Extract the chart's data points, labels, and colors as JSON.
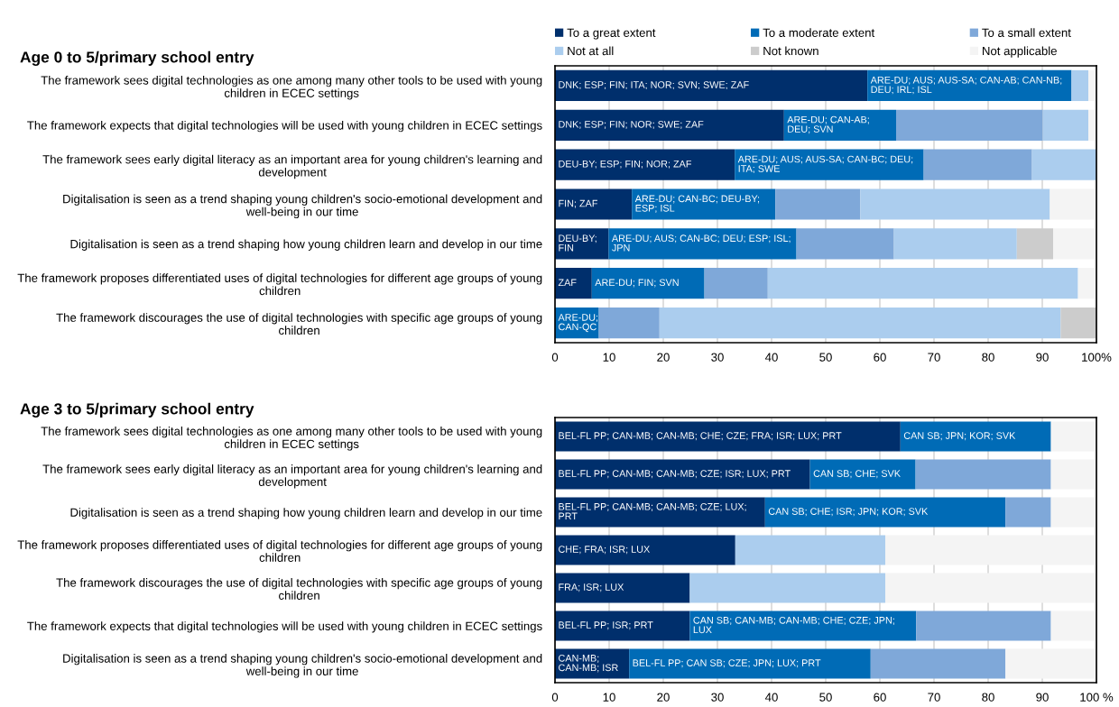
{
  "chart_data": [
    {
      "type": "bar",
      "orientation": "horizontal",
      "stacked": true,
      "title": "Age 0 to 5/primary school entry",
      "legend": "top",
      "grid": "x",
      "categories": [
        "The framework sees digital technologies as one among many other tools to be used with young children in ECEC settings",
        "The framework expects that digital technologies will be used with young children in ECEC settings",
        "The framework sees early digital literacy as an important area for young children's learning and development",
        "Digitalisation is seen as a trend shaping young children's socio-emotional development and well-being in our time",
        "Digitalisation is seen as a trend shaping how young children learn and develop in our time",
        "The framework proposes differentiated uses of digital technologies for different age groups of young children",
        "The framework discourages the use of digital technologies with specific age groups of young children"
      ],
      "xlim": [
        0,
        100
      ],
      "xticks": [
        0,
        10,
        20,
        30,
        40,
        50,
        60,
        70,
        80,
        90,
        {
          "value": 100,
          "label": "100%"
        }
      ],
      "series": [
        {
          "name": "To a great extent",
          "color": "#002f6c",
          "values": [
            57.7,
            42.3,
            33.2,
            14.2,
            9.9,
            6.8,
            0
          ],
          "value_labels": [
            "DNK; ESP; FIN; ITA; NOR; SVN; SWE; ZAF",
            "DNK; ESP; FIN; NOR; SWE; ZAF",
            "DEU-BY; ESP; FIN; NOR; ZAF",
            "FIN; ZAF",
            "DEU-BY; FIN",
            "ZAF",
            null
          ]
        },
        {
          "name": "To a moderate extent",
          "color": "#006bb6",
          "values": [
            37.7,
            20.7,
            34.9,
            26.5,
            34.7,
            20.8,
            8.1
          ],
          "value_labels": [
            "ARE-DU; AUS; AUS-SA; CAN-AB; CAN-NB; DEU; IRL; ISL",
            "ARE-DU; CAN-AB; DEU; SVN",
            "ARE-DU; AUS; AUS-SA; CAN-BC; DEU; ITA; SWE",
            "ARE-DU; CAN-BC; DEU-BY; ESP; ISL",
            "ARE-DU; AUS; CAN-BC; DEU; ESP; ISL; JPN",
            "ARE-DU; FIN; SVN",
            "ARE-DU; CAN-QC"
          ]
        },
        {
          "name": "To a small extent",
          "color": "#7fa8d9",
          "values": [
            0,
            27.1,
            20.0,
            15.7,
            18.0,
            11.7,
            11.2
          ]
        },
        {
          "name": "Not at all",
          "color": "#abcdee",
          "values": [
            3.1,
            8.4,
            11.9,
            35.0,
            22.7,
            57.3,
            74.1
          ]
        },
        {
          "name": "Not known",
          "color": "#cccccc",
          "values": [
            0,
            0,
            0,
            0,
            6.7,
            0,
            6.6
          ]
        },
        {
          "name": "Not applicable",
          "color": "#f4f4f4",
          "values": [
            1.5,
            1.5,
            0,
            8.6,
            8.0,
            3.4,
            0
          ]
        }
      ]
    },
    {
      "type": "bar",
      "orientation": "horizontal",
      "stacked": true,
      "title": "Age 3 to 5/primary school entry",
      "grid": "x",
      "categories": [
        "The framework sees digital technologies as one among many other tools to be used with young children in ECEC settings",
        "The framework sees early digital literacy as an important area for young children's learning and development",
        "Digitalisation is seen as a trend shaping how young children learn and develop in our time",
        "The framework proposes differentiated uses of digital technologies for different age groups of young children",
        "The framework discourages the use of digital technologies with specific age groups of young children",
        "The framework expects that digital technologies will be used with young children in ECEC settings",
        "Digitalisation is seen as a trend shaping young children's socio-emotional development and well-being in our time"
      ],
      "xlim": [
        0,
        100
      ],
      "xticks": [
        0,
        10,
        20,
        30,
        40,
        50,
        60,
        70,
        80,
        90,
        {
          "value": 100,
          "label": "100 %"
        }
      ],
      "series": [
        {
          "color": "#002f6c",
          "values": [
            63.8,
            47.1,
            38.8,
            33.3,
            24.9,
            24.9,
            13.7
          ],
          "value_labels": [
            "BEL-FL PP; CAN-MB; CAN-MB; CHE; CZE; FRA; ISR; LUX; PRT",
            "BEL-FL PP; CAN-MB; CAN-MB; CZE; ISR; LUX; PRT",
            "BEL-FL PP; CAN-MB; CAN-MB; CZE; LUX; PRT",
            "CHE; FRA; ISR; LUX",
            "FRA; ISR; LUX",
            "BEL-FL PP; ISR; PRT",
            "CAN-MB; CAN-MB; ISR"
          ]
        },
        {
          "color": "#006bb6",
          "values": [
            27.8,
            19.5,
            44.4,
            0,
            0,
            41.8,
            44.6
          ],
          "value_labels": [
            "CAN SB; JPN; KOR; SVK",
            "CAN SB; CHE; SVK",
            "CAN SB; CHE; ISR; JPN; KOR; SVK",
            null,
            null,
            "CAN SB; CAN-MB; CAN-MB; CHE; CZE; JPN; LUX",
            "BEL-FL PP; CAN SB; CZE; JPN; LUX; PRT"
          ]
        },
        {
          "color": "#7fa8d9",
          "values": [
            0,
            25.0,
            8.4,
            0,
            0,
            24.9,
            24.9
          ]
        },
        {
          "color": "#abcdee",
          "values": [
            0,
            0,
            0,
            27.7,
            36.1,
            0,
            0
          ]
        },
        {
          "color": "#cccccc",
          "values": [
            0,
            0,
            0,
            0,
            0,
            0,
            0
          ]
        },
        {
          "color": "#f4f4f4",
          "values": [
            8.4,
            8.4,
            8.4,
            39.0,
            39.0,
            8.4,
            16.8
          ]
        }
      ]
    }
  ]
}
